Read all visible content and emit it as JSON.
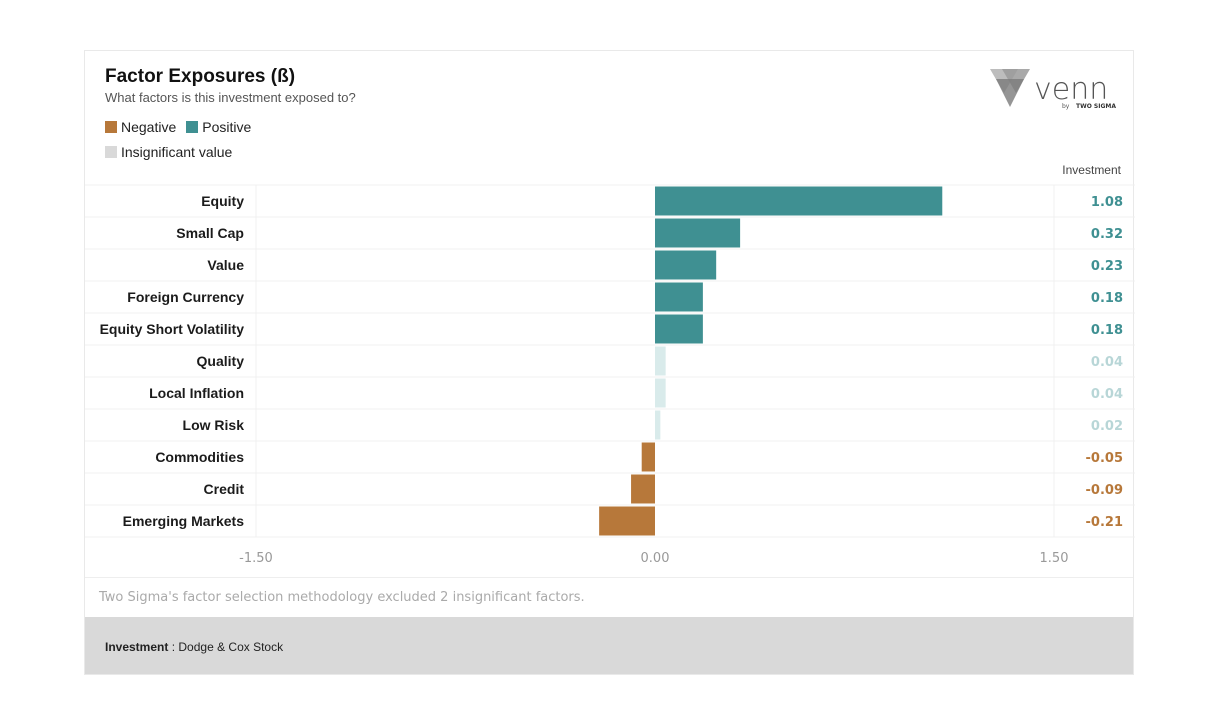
{
  "header": {
    "title": "Factor Exposures (ß)",
    "subtitle": "What factors is this investment exposed to?"
  },
  "legend": {
    "negative": "Negative",
    "positive": "Positive",
    "insignificant": "Insignificant value"
  },
  "logo": {
    "name": "venn",
    "byline": "by",
    "company": "TWO SIGMA",
    "icon": "venn-triangle-icon"
  },
  "column_header": "Investment",
  "colors": {
    "negative": "#b7783a",
    "positive": "#3f9092",
    "insignificant": "#d9ebeb",
    "insignificant_text": "#b8d6d7",
    "legend_insignificant": "#d9d9d9"
  },
  "chart_data": {
    "type": "bar",
    "orientation": "horizontal",
    "categories": [
      "Equity",
      "Small Cap",
      "Value",
      "Foreign Currency",
      "Equity Short Volatility",
      "Quality",
      "Local Inflation",
      "Low Risk",
      "Commodities",
      "Credit",
      "Emerging Markets"
    ],
    "values": [
      1.08,
      0.32,
      0.23,
      0.18,
      0.18,
      0.04,
      0.04,
      0.02,
      -0.05,
      -0.09,
      -0.21
    ],
    "value_labels": [
      "1.08",
      "0.32",
      "0.23",
      "0.18",
      "0.18",
      "0.04",
      "0.04",
      "0.02",
      "-0.05",
      "-0.09",
      "-0.21"
    ],
    "significant": [
      true,
      true,
      true,
      true,
      true,
      false,
      false,
      false,
      true,
      true,
      true
    ],
    "xlim": [
      -1.5,
      1.5
    ],
    "xticks": [
      -1.5,
      0,
      1.5
    ],
    "xtick_labels": [
      "-1.50",
      "0.00",
      "1.50"
    ]
  },
  "footnote": "Two Sigma's factor selection methodology excluded 2 insignificant factors.",
  "footer": {
    "label": "Investment",
    "separator": " : ",
    "value": "Dodge & Cox Stock"
  }
}
